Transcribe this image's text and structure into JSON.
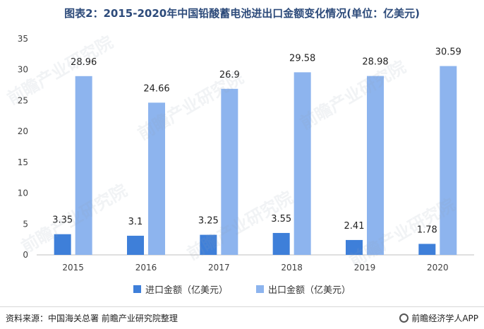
{
  "title": "图表2：2015-2020年中国铅酸蓄电池进出口金额变化情况(单位：亿美元)",
  "colors": {
    "import": "#3e7fd9",
    "export": "#8db4ee",
    "axis": "#bfbfbf",
    "text": "#404040"
  },
  "legend": {
    "import_label": "进口金额（亿美元）",
    "export_label": "出口金额（亿美元）"
  },
  "footer": {
    "source": "资料来源：中国海关总署 前瞻产业研究院整理",
    "brand": "前瞻经济学人APP"
  },
  "watermark": "前瞻产业研究院",
  "chart_data": {
    "type": "bar",
    "categories": [
      "2015",
      "2016",
      "2017",
      "2018",
      "2019",
      "2020"
    ],
    "series": [
      {
        "name": "进口金额（亿美元）",
        "values": [
          3.35,
          3.1,
          3.25,
          3.55,
          2.41,
          1.78
        ]
      },
      {
        "name": "出口金额（亿美元）",
        "values": [
          28.96,
          24.66,
          26.9,
          29.58,
          28.98,
          30.59
        ]
      }
    ],
    "ylim": [
      0,
      35
    ],
    "yticks": [
      0,
      5,
      10,
      15,
      20,
      25,
      30,
      35
    ],
    "grid": false,
    "legend_position": "bottom"
  }
}
